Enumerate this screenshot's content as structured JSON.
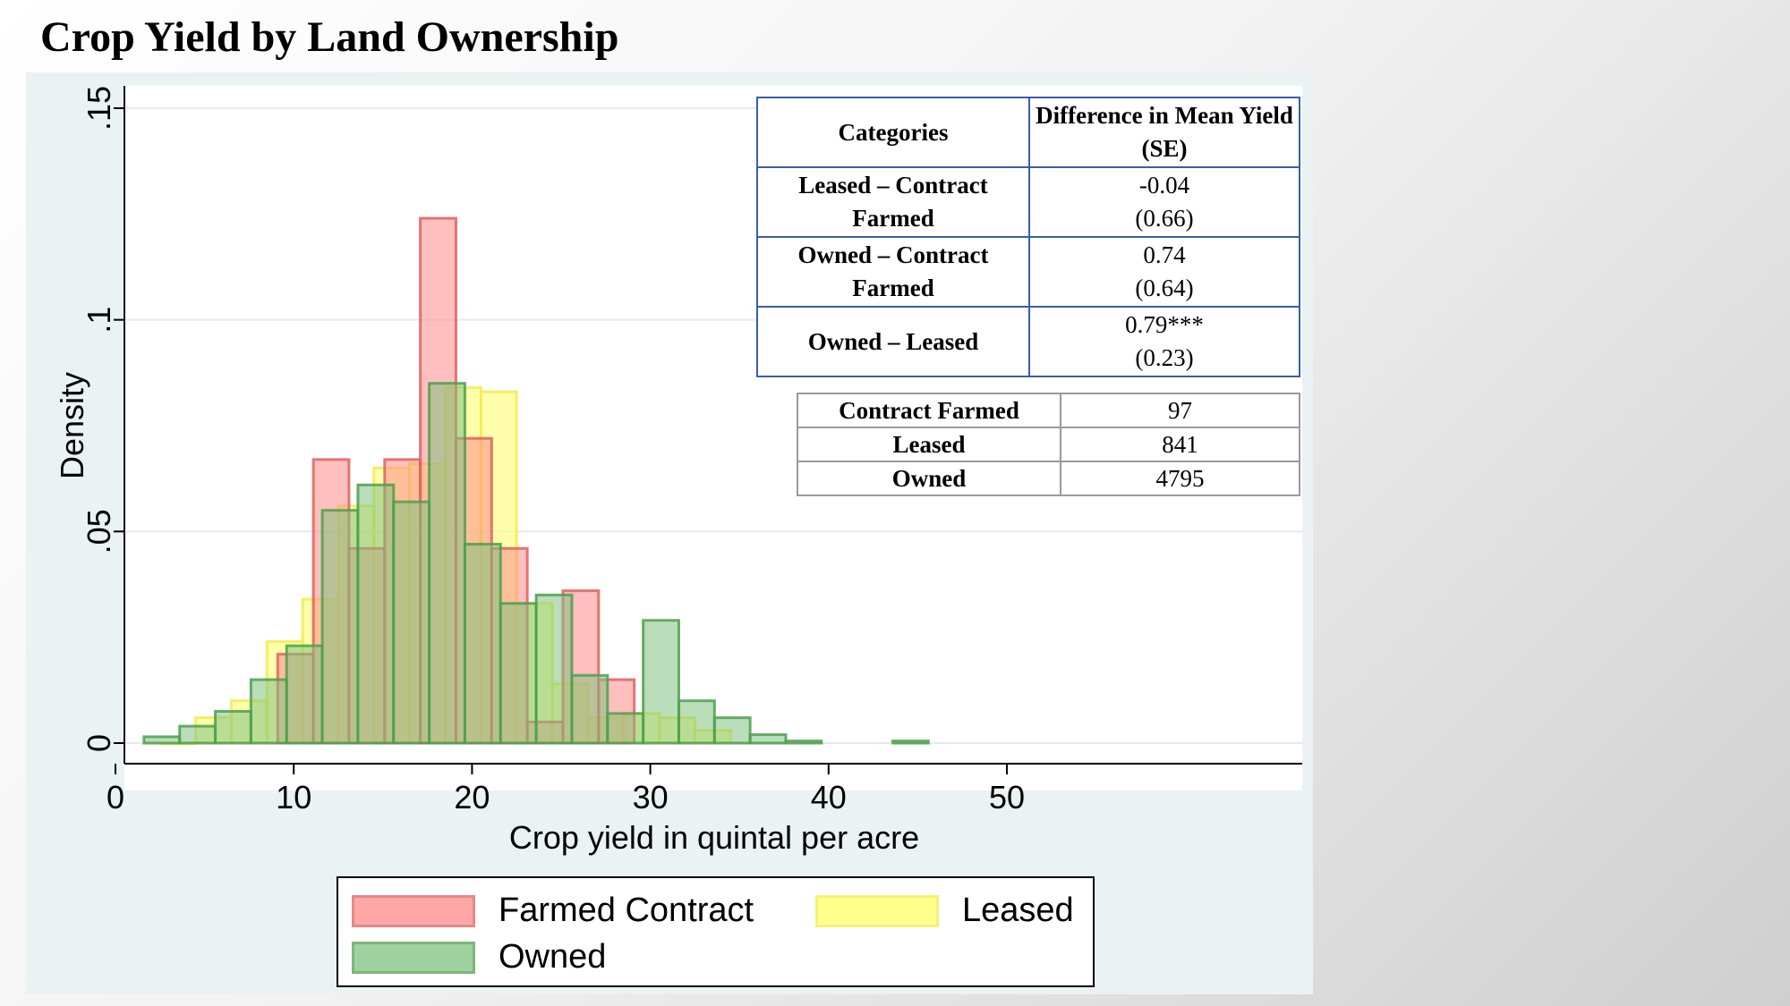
{
  "page": {
    "title": "Crop Yield by Land Ownership"
  },
  "chart_data": {
    "type": "bar",
    "subtype": "overlaid-histogram",
    "xlabel": "Crop yield in quintal per acre",
    "ylabel": "Density",
    "xlim": [
      0,
      50
    ],
    "ylim": [
      0,
      0.15
    ],
    "xticks": [
      0,
      10,
      20,
      30,
      40,
      50
    ],
    "xtick_labels": [
      "0",
      "10",
      "20",
      "30",
      "40",
      "50"
    ],
    "yticks": [
      0,
      0.05,
      0.1,
      0.15
    ],
    "ytick_labels": [
      "0",
      ".05",
      ".1",
      ".15"
    ],
    "grid": true,
    "legend_position": "bottom",
    "series": [
      {
        "name": "Leased",
        "color": "#ffff66",
        "edge": "#f2ec50",
        "bins": [
          {
            "x0": 2.5,
            "x1": 4.5,
            "y": 0.0
          },
          {
            "x0": 4.5,
            "x1": 6.5,
            "y": 0.006
          },
          {
            "x0": 6.5,
            "x1": 8.5,
            "y": 0.01
          },
          {
            "x0": 8.5,
            "x1": 10.5,
            "y": 0.024
          },
          {
            "x0": 10.5,
            "x1": 12.5,
            "y": 0.034
          },
          {
            "x0": 12.5,
            "x1": 14.5,
            "y": 0.056
          },
          {
            "x0": 14.5,
            "x1": 16.5,
            "y": 0.065
          },
          {
            "x0": 16.5,
            "x1": 18.5,
            "y": 0.066
          },
          {
            "x0": 18.5,
            "x1": 20.5,
            "y": 0.084
          },
          {
            "x0": 20.5,
            "x1": 22.5,
            "y": 0.083
          },
          {
            "x0": 22.5,
            "x1": 24.5,
            "y": 0.033
          },
          {
            "x0": 24.5,
            "x1": 26.5,
            "y": 0.014
          },
          {
            "x0": 26.5,
            "x1": 28.5,
            "y": 0.006
          },
          {
            "x0": 28.5,
            "x1": 30.5,
            "y": 0.007
          },
          {
            "x0": 30.5,
            "x1": 32.5,
            "y": 0.006
          },
          {
            "x0": 32.5,
            "x1": 34.5,
            "y": 0.003
          }
        ]
      },
      {
        "name": "Farmed Contract",
        "color": "#ff8a8a",
        "edge": "#e06060",
        "bins": [
          {
            "x0": 9.1,
            "x1": 11.1,
            "y": 0.021
          },
          {
            "x0": 11.1,
            "x1": 13.1,
            "y": 0.067
          },
          {
            "x0": 13.1,
            "x1": 15.1,
            "y": 0.046
          },
          {
            "x0": 15.1,
            "x1": 17.1,
            "y": 0.067
          },
          {
            "x0": 17.1,
            "x1": 19.1,
            "y": 0.124
          },
          {
            "x0": 19.1,
            "x1": 21.1,
            "y": 0.072
          },
          {
            "x0": 21.1,
            "x1": 23.1,
            "y": 0.046
          },
          {
            "x0": 23.1,
            "x1": 25.1,
            "y": 0.005
          },
          {
            "x0": 25.1,
            "x1": 27.1,
            "y": 0.036
          },
          {
            "x0": 27.1,
            "x1": 29.1,
            "y": 0.015
          }
        ]
      },
      {
        "name": "Owned",
        "color": "#80c280",
        "edge": "#4f9f4f",
        "bins": [
          {
            "x0": 1.6,
            "x1": 3.6,
            "y": 0.0015
          },
          {
            "x0": 3.6,
            "x1": 5.6,
            "y": 0.004
          },
          {
            "x0": 5.6,
            "x1": 7.6,
            "y": 0.0075
          },
          {
            "x0": 7.6,
            "x1": 9.6,
            "y": 0.015
          },
          {
            "x0": 9.6,
            "x1": 11.6,
            "y": 0.023
          },
          {
            "x0": 11.6,
            "x1": 13.6,
            "y": 0.055
          },
          {
            "x0": 13.6,
            "x1": 15.6,
            "y": 0.061
          },
          {
            "x0": 15.6,
            "x1": 17.6,
            "y": 0.057
          },
          {
            "x0": 17.6,
            "x1": 19.6,
            "y": 0.085
          },
          {
            "x0": 19.6,
            "x1": 21.6,
            "y": 0.047
          },
          {
            "x0": 21.6,
            "x1": 23.6,
            "y": 0.033
          },
          {
            "x0": 23.6,
            "x1": 25.6,
            "y": 0.035
          },
          {
            "x0": 25.6,
            "x1": 27.6,
            "y": 0.016
          },
          {
            "x0": 27.6,
            "x1": 29.6,
            "y": 0.007
          },
          {
            "x0": 29.6,
            "x1": 31.6,
            "y": 0.029
          },
          {
            "x0": 31.6,
            "x1": 33.6,
            "y": 0.01
          },
          {
            "x0": 33.6,
            "x1": 35.6,
            "y": 0.006
          },
          {
            "x0": 35.6,
            "x1": 37.6,
            "y": 0.002
          },
          {
            "x0": 37.6,
            "x1": 39.6,
            "y": 0.0005
          },
          {
            "x0": 43.6,
            "x1": 45.6,
            "y": 0.0005
          }
        ]
      }
    ]
  },
  "diff_table": {
    "headers": [
      "Categories",
      "Difference in Mean Yield (SE)"
    ],
    "rows": [
      {
        "category": "Leased – Contract Farmed",
        "value": "-0.04",
        "se": "(0.66)"
      },
      {
        "category": "Owned – Contract Farmed",
        "value": "0.74",
        "se": "(0.64)"
      },
      {
        "category": "Owned – Leased",
        "value": "0.79***",
        "se": "(0.23)"
      }
    ]
  },
  "count_table": {
    "rows": [
      {
        "label": "Contract Farmed",
        "value": "97"
      },
      {
        "label": "Leased",
        "value": "841"
      },
      {
        "label": "Owned",
        "value": "4795"
      }
    ]
  },
  "legend": {
    "items": [
      {
        "label": "Farmed Contract",
        "color": "#ff8a8a"
      },
      {
        "label": "Leased",
        "color": "#ffff66"
      },
      {
        "label": "Owned",
        "color": "#80c280"
      }
    ]
  }
}
